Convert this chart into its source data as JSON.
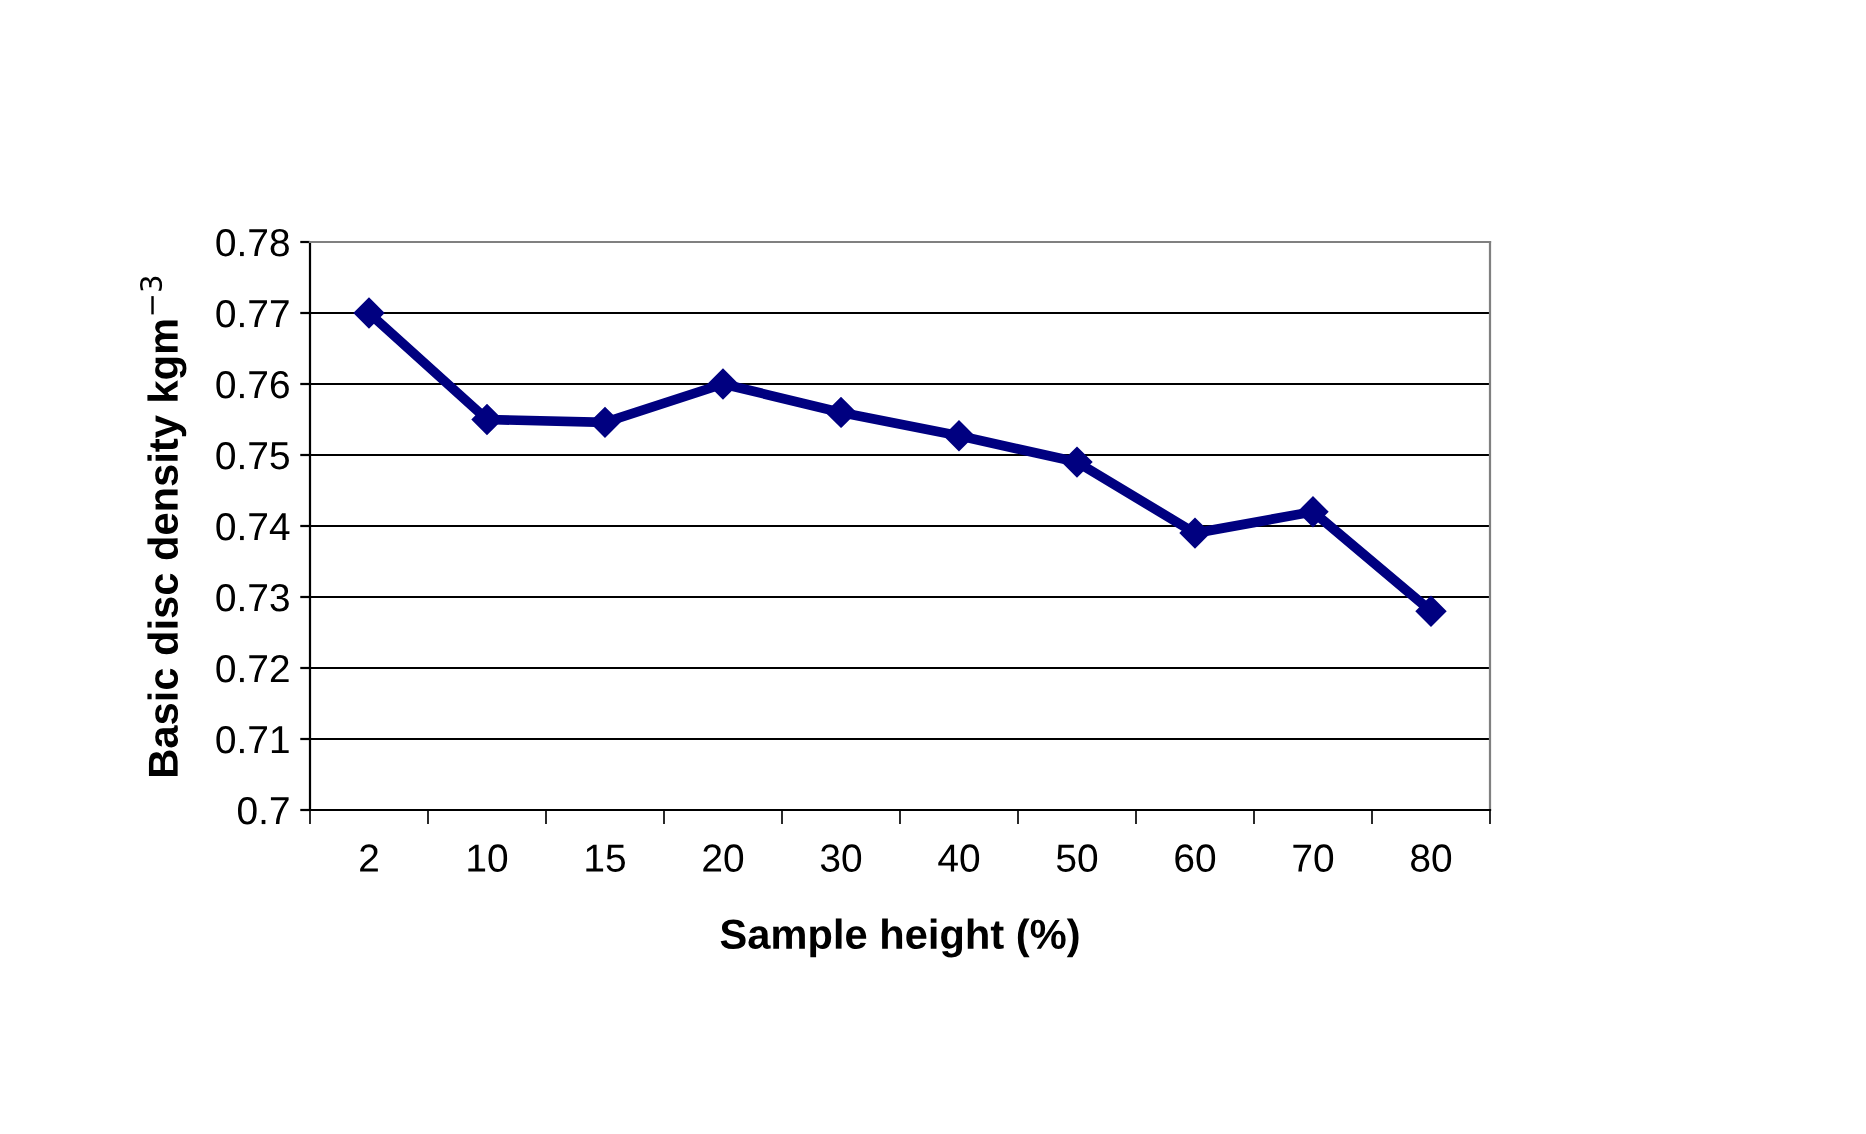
{
  "chart_data": {
    "type": "line",
    "xlabel": "Sample height (%)",
    "ylabel": "Basic disc density kgm$^{−3}$",
    "categories": [
      "2",
      "10",
      "15",
      "20",
      "30",
      "40",
      "50",
      "60",
      "70",
      "80"
    ],
    "series": [
      {
        "color": "#000080",
        "values": [
          0.77,
          0.755,
          0.7546,
          0.76,
          0.756,
          0.7527,
          0.749,
          0.739,
          0.742,
          0.728
        ]
      }
    ],
    "ylim": [
      0.7,
      0.78
    ],
    "yticks": [
      {
        "value": 0.7,
        "label": "0.7"
      },
      0.71,
      0.72,
      0.73,
      0.74,
      0.75,
      0.76,
      0.77,
      0.78
    ],
    "grid": "y",
    "marker": "diamond",
    "line_style": "solid"
  }
}
